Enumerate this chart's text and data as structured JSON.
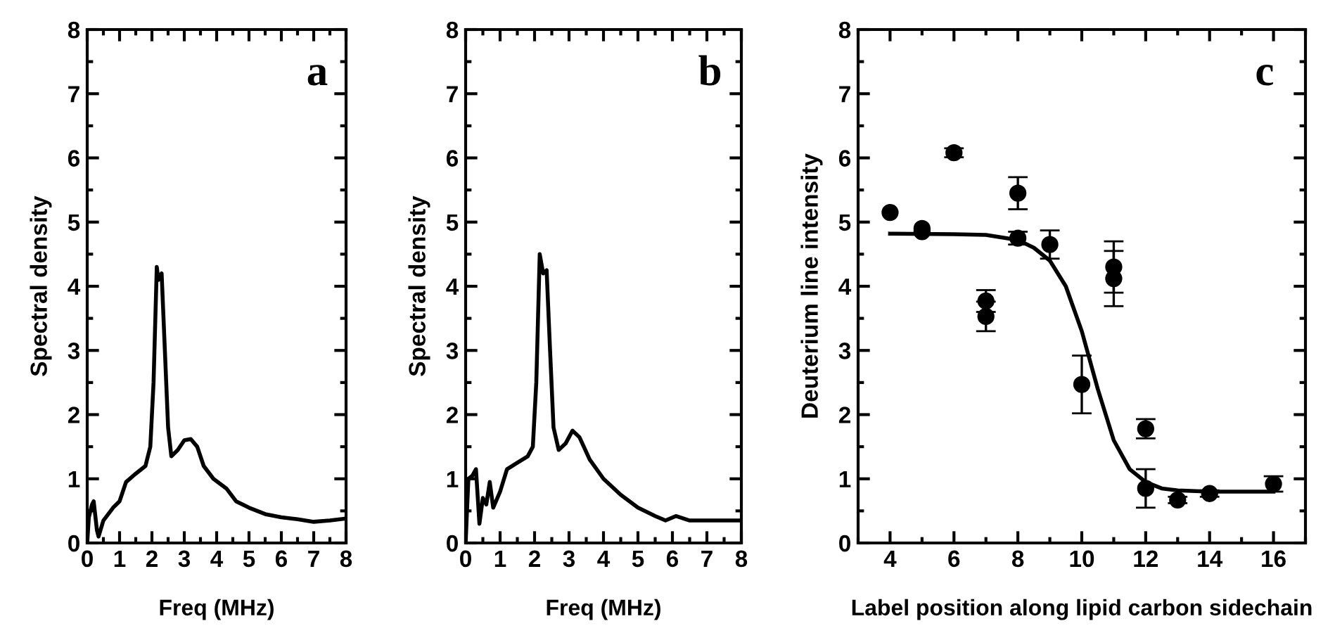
{
  "chart_data": [
    {
      "type": "line",
      "xlabel": "Freq (MHz)",
      "ylabel": "Spectral density",
      "annotations": [
        "a"
      ],
      "xlim": [
        0,
        8
      ],
      "ylim": [
        0,
        8
      ],
      "xticks": [
        0,
        1,
        2,
        3,
        4,
        5,
        6,
        7,
        8
      ],
      "yticks": [
        0,
        1,
        2,
        3,
        4,
        5,
        6,
        7,
        8
      ],
      "grid": false,
      "legend": false,
      "series": [
        {
          "color": "#000000",
          "x": [
            0,
            0.05,
            0.15,
            0.2,
            0.3,
            0.35,
            0.5,
            0.8,
            1.0,
            1.2,
            1.5,
            1.8,
            1.95,
            2.05,
            2.15,
            2.2,
            2.3,
            2.4,
            2.5,
            2.6,
            2.8,
            3.0,
            3.2,
            3.4,
            3.6,
            3.9,
            4.3,
            4.6,
            5.0,
            5.5,
            6.0,
            6.5,
            7.0,
            7.5,
            8.0
          ],
          "values": [
            0,
            0.4,
            0.6,
            0.65,
            0.2,
            0.1,
            0.35,
            0.55,
            0.65,
            0.95,
            1.08,
            1.2,
            1.5,
            2.5,
            4.3,
            4.1,
            4.2,
            3.0,
            1.8,
            1.35,
            1.45,
            1.6,
            1.62,
            1.5,
            1.2,
            1.0,
            0.85,
            0.65,
            0.55,
            0.45,
            0.4,
            0.37,
            0.33,
            0.35,
            0.38
          ]
        }
      ]
    },
    {
      "type": "line",
      "xlabel": "Freq (MHz)",
      "ylabel": "Spectral density",
      "annotations": [
        "b"
      ],
      "xlim": [
        0,
        8
      ],
      "ylim": [
        0,
        8
      ],
      "xticks": [
        0,
        1,
        2,
        3,
        4,
        5,
        6,
        7,
        8
      ],
      "yticks": [
        0,
        1,
        2,
        3,
        4,
        5,
        6,
        7,
        8
      ],
      "grid": false,
      "legend": false,
      "series": [
        {
          "color": "#000000",
          "x": [
            0,
            0.08,
            0.2,
            0.3,
            0.4,
            0.5,
            0.6,
            0.7,
            0.8,
            1.0,
            1.2,
            1.5,
            1.8,
            1.95,
            2.05,
            2.15,
            2.25,
            2.35,
            2.45,
            2.55,
            2.7,
            2.9,
            3.1,
            3.3,
            3.6,
            4.0,
            4.5,
            5.0,
            5.5,
            5.8,
            6.1,
            6.5,
            7.0,
            7.5,
            8.0
          ],
          "values": [
            0,
            1.0,
            1.05,
            1.15,
            0.3,
            0.7,
            0.6,
            0.95,
            0.55,
            0.8,
            1.15,
            1.25,
            1.35,
            1.5,
            2.5,
            4.5,
            4.2,
            4.25,
            3.0,
            1.8,
            1.45,
            1.55,
            1.75,
            1.65,
            1.3,
            1.0,
            0.75,
            0.55,
            0.42,
            0.35,
            0.42,
            0.35,
            0.35,
            0.35,
            0.35
          ]
        }
      ]
    },
    {
      "type": "scatter",
      "xlabel": "Label position along lipid carbon sidechain",
      "ylabel": "Deuterium line intensity",
      "annotations": [
        "c"
      ],
      "xlim": [
        3,
        17
      ],
      "ylim": [
        0,
        8
      ],
      "xticks": [
        4,
        6,
        8,
        10,
        12,
        14,
        16
      ],
      "yticks": [
        0,
        1,
        2,
        3,
        4,
        5,
        6,
        7,
        8
      ],
      "grid": false,
      "legend": false,
      "series": [
        {
          "type": "scatter",
          "marker": "circle",
          "color": "#000000",
          "x": [
            4,
            5,
            5,
            6,
            7,
            7,
            8,
            8,
            9,
            10,
            11,
            11,
            12,
            12,
            13,
            14,
            16
          ],
          "values": [
            5.15,
            4.9,
            4.85,
            6.08,
            3.77,
            3.53,
            5.45,
            4.75,
            4.65,
            2.47,
            4.3,
            4.12,
            1.78,
            0.85,
            0.67,
            0.77,
            0.92
          ],
          "errors": [
            null,
            null,
            null,
            0.07,
            0.17,
            0.23,
            0.25,
            0.1,
            0.22,
            0.45,
            0.4,
            0.43,
            0.15,
            0.3,
            0.05,
            0.05,
            0.12
          ]
        },
        {
          "type": "line",
          "color": "#000000",
          "x": [
            4,
            6,
            7,
            8,
            8.5,
            9,
            9.5,
            10,
            10.5,
            11,
            11.5,
            12,
            12.5,
            13,
            14,
            16
          ],
          "values": [
            4.82,
            4.81,
            4.8,
            4.72,
            4.6,
            4.4,
            4.0,
            3.3,
            2.4,
            1.6,
            1.15,
            0.95,
            0.85,
            0.82,
            0.8,
            0.8
          ]
        }
      ]
    }
  ]
}
